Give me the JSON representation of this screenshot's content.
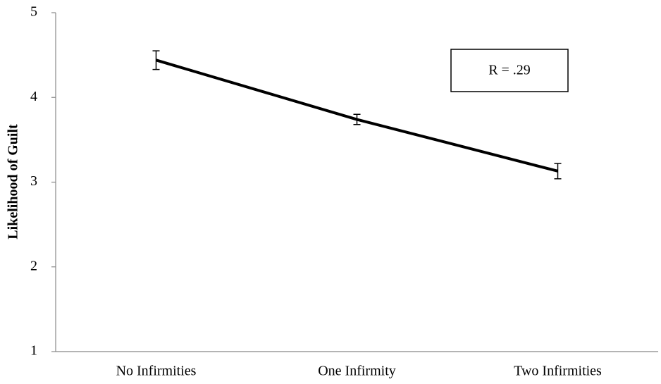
{
  "chart_data": {
    "type": "line",
    "categories": [
      "No Infirmities",
      "One Infirmity",
      "Two Infirmities"
    ],
    "values": [
      4.44,
      3.74,
      3.13
    ],
    "errors": [
      0.11,
      0.06,
      0.09
    ],
    "color": "#000000",
    "y_axis_label": "Likelihood of Guilt",
    "annotation": "R = .29",
    "ylim": [
      1,
      5
    ],
    "yticks": [
      1,
      2,
      3,
      4,
      5
    ],
    "grid": false
  }
}
